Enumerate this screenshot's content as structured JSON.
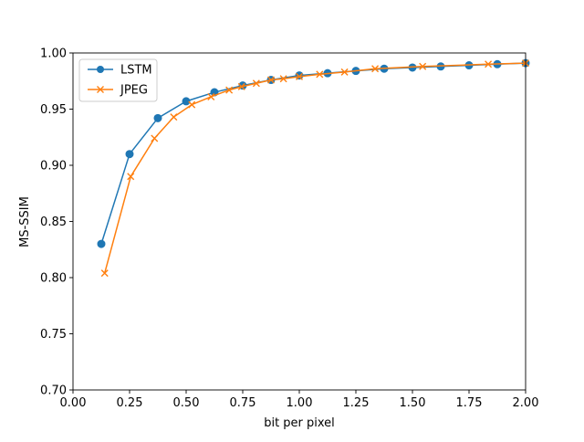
{
  "chart_data": {
    "type": "line",
    "xlabel": "bit per pixel",
    "ylabel": "MS-SSIM",
    "xlim": [
      0.0,
      2.0
    ],
    "ylim": [
      0.7,
      1.0
    ],
    "xticks": [
      0.0,
      0.25,
      0.5,
      0.75,
      1.0,
      1.25,
      1.5,
      1.75,
      2.0
    ],
    "xtick_labels": [
      "0.00",
      "0.25",
      "0.50",
      "0.75",
      "1.00",
      "1.25",
      "1.50",
      "1.75",
      "2.00"
    ],
    "yticks": [
      0.7,
      0.75,
      0.8,
      0.85,
      0.9,
      0.95,
      1.0
    ],
    "ytick_labels": [
      "0.70",
      "0.75",
      "0.80",
      "0.85",
      "0.90",
      "0.95",
      "1.00"
    ],
    "grid": false,
    "legend_position": "top-left",
    "series": [
      {
        "name": "LSTM",
        "color": "#1f77b4",
        "marker": "circle",
        "x": [
          0.125,
          0.25,
          0.375,
          0.5,
          0.625,
          0.75,
          0.875,
          1.0,
          1.125,
          1.25,
          1.375,
          1.5,
          1.625,
          1.75,
          1.875,
          2.0
        ],
        "y": [
          0.83,
          0.91,
          0.942,
          0.957,
          0.965,
          0.971,
          0.976,
          0.98,
          0.982,
          0.984,
          0.986,
          0.987,
          0.988,
          0.989,
          0.99,
          0.991
        ]
      },
      {
        "name": "JPEG",
        "color": "#ff7f0e",
        "marker": "x",
        "x": [
          0.14,
          0.255,
          0.36,
          0.445,
          0.525,
          0.61,
          0.69,
          0.745,
          0.81,
          0.875,
          0.93,
          1.0,
          1.09,
          1.2,
          1.335,
          1.545,
          1.835,
          2.0
        ],
        "y": [
          0.804,
          0.89,
          0.924,
          0.943,
          0.954,
          0.961,
          0.967,
          0.97,
          0.973,
          0.976,
          0.977,
          0.979,
          0.981,
          0.983,
          0.986,
          0.988,
          0.99,
          0.991
        ]
      }
    ]
  }
}
